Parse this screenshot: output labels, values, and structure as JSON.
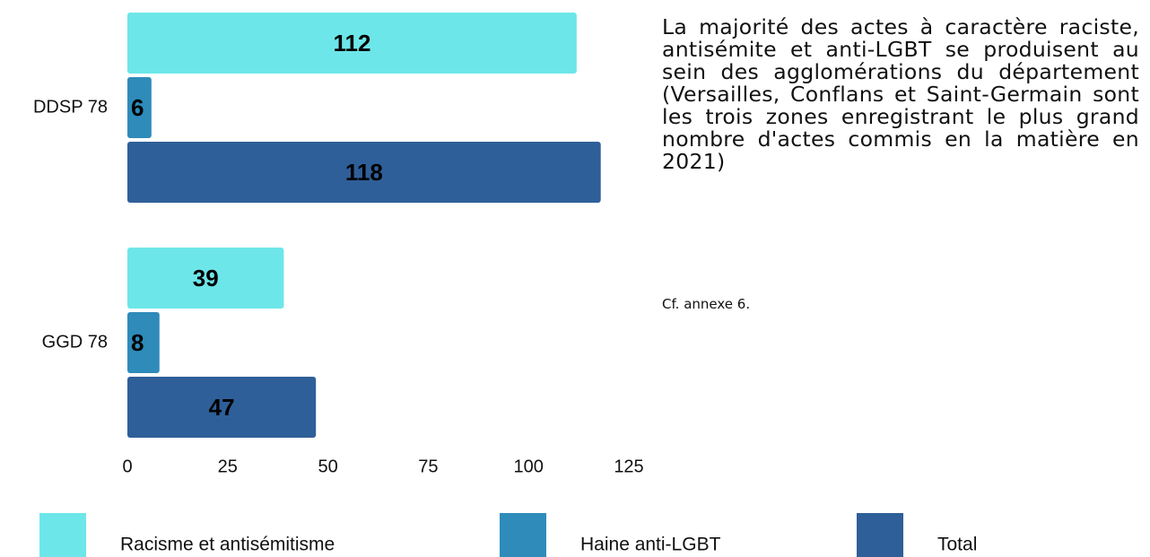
{
  "chart_data": {
    "type": "bar",
    "orientation": "horizontal",
    "categories": [
      "DDSP 78",
      "GGD 78"
    ],
    "series": [
      {
        "name": "Racisme et antisémitisme",
        "color": "#6de6e9",
        "values": [
          112,
          39
        ]
      },
      {
        "name": "Haine anti-LGBT",
        "color": "#2e8bba",
        "values": [
          6,
          8
        ]
      },
      {
        "name": "Total",
        "color": "#2f5f99",
        "values": [
          118,
          47
        ]
      }
    ],
    "xlim": [
      0,
      125
    ],
    "xticks": [
      0,
      25,
      50,
      75,
      100,
      125
    ],
    "grid": false,
    "legend": "bottom",
    "annotation": "La majorité des actes à caractère raciste, antisémite et anti-LGBT se produisent au sein des agglomérations du département (Versailles, Conflans et Saint-Germain sont les trois zones enregistrant le plus grand nombre d'actes commis en la matière en 2021)",
    "note": "Cf. annexe 6."
  }
}
